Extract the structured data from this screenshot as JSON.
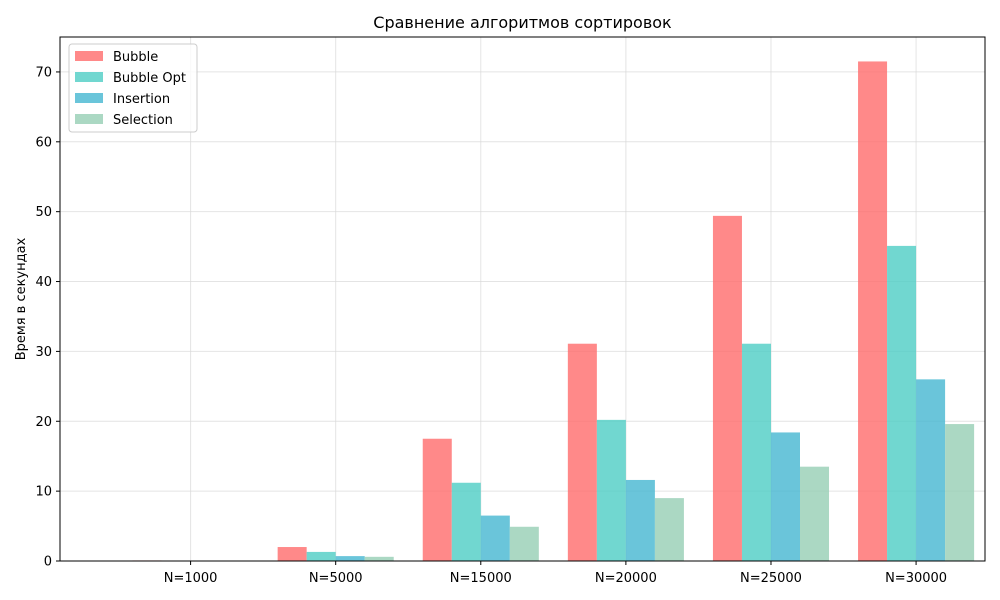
{
  "chart_data": {
    "type": "bar",
    "title": "Сравнение алгоритмов сортировок",
    "xlabel": "",
    "ylabel": "Время в секундах",
    "categories": [
      "N=1000",
      "N=5000",
      "N=15000",
      "N=20000",
      "N=25000",
      "N=30000"
    ],
    "ylim": [
      0,
      75
    ],
    "yticks": [
      0,
      10,
      20,
      30,
      40,
      50,
      60,
      70
    ],
    "grid": true,
    "legend_position": "top-left",
    "series": [
      {
        "name": "Bubble",
        "color": "#ff6b6b",
        "values": [
          0.08,
          2.0,
          17.5,
          31.1,
          49.4,
          71.5
        ]
      },
      {
        "name": "Bubble Opt",
        "color": "#4ecdc4",
        "values": [
          0.05,
          1.3,
          11.2,
          20.2,
          31.1,
          45.1
        ]
      },
      {
        "name": "Insertion",
        "color": "#45b7d1",
        "values": [
          0.03,
          0.7,
          6.5,
          11.6,
          18.4,
          26.0
        ]
      },
      {
        "name": "Selection",
        "color": "#96ceb4",
        "values": [
          0.02,
          0.6,
          4.9,
          9.0,
          13.5,
          19.6
        ]
      }
    ],
    "bar_opacity": 0.8
  }
}
